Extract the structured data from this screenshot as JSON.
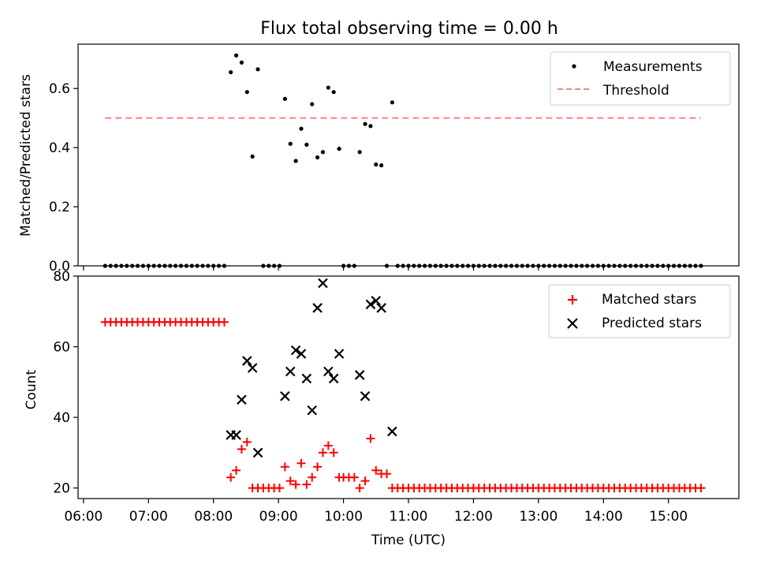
{
  "figure": {
    "title": "Flux total observing time = 0.00 h"
  },
  "chart_data": [
    {
      "type": "scatter",
      "ylabel": "Matched/Predicted stars",
      "xlabel": "",
      "xlim": [
        "05:55",
        "16:05"
      ],
      "ylim": [
        0,
        0.75
      ],
      "yticks": [
        0.0,
        0.2,
        0.4,
        0.6
      ],
      "ytick_labels": [
        "0.0",
        "0.2",
        "0.4",
        "0.6"
      ],
      "legend": {
        "position": "top-right",
        "entries": [
          "Measurements",
          "Threshold"
        ]
      },
      "series": [
        {
          "name": "Measurements",
          "marker": "dot",
          "color": "#000000",
          "points": [
            [
              "06:20",
              0
            ],
            [
              "06:25",
              0
            ],
            [
              "06:30",
              0
            ],
            [
              "06:35",
              0
            ],
            [
              "06:40",
              0
            ],
            [
              "06:45",
              0
            ],
            [
              "06:50",
              0
            ],
            [
              "06:55",
              0
            ],
            [
              "07:00",
              0
            ],
            [
              "07:05",
              0
            ],
            [
              "07:10",
              0
            ],
            [
              "07:15",
              0
            ],
            [
              "07:20",
              0
            ],
            [
              "07:25",
              0
            ],
            [
              "07:30",
              0
            ],
            [
              "07:35",
              0
            ],
            [
              "07:40",
              0
            ],
            [
              "07:45",
              0
            ],
            [
              "07:50",
              0
            ],
            [
              "07:55",
              0
            ],
            [
              "08:00",
              0
            ],
            [
              "08:05",
              0
            ],
            [
              "08:10",
              0
            ],
            [
              "08:16",
              0.655
            ],
            [
              "08:21",
              0.712
            ],
            [
              "08:26",
              0.688
            ],
            [
              "08:31",
              0.588
            ],
            [
              "08:36",
              0.37
            ],
            [
              "08:41",
              0.665
            ],
            [
              "08:46",
              0
            ],
            [
              "08:51",
              0
            ],
            [
              "08:56",
              0
            ],
            [
              "09:01",
              0
            ],
            [
              "09:06",
              0.565
            ],
            [
              "09:11",
              0.413
            ],
            [
              "09:16",
              0.355
            ],
            [
              "09:21",
              0.464
            ],
            [
              "09:26",
              0.41
            ],
            [
              "09:31",
              0.547
            ],
            [
              "09:36",
              0.367
            ],
            [
              "09:41",
              0.385
            ],
            [
              "09:46",
              0.603
            ],
            [
              "09:51",
              0.588
            ],
            [
              "09:56",
              0.396
            ],
            [
              "10:00",
              0
            ],
            [
              "10:05",
              0
            ],
            [
              "10:10",
              0
            ],
            [
              "10:15",
              0.385
            ],
            [
              "10:20",
              0.48
            ],
            [
              "10:25",
              0.473
            ],
            [
              "10:30",
              0.343
            ],
            [
              "10:35",
              0.34
            ],
            [
              "10:40",
              0
            ],
            [
              "10:45",
              0.553
            ],
            [
              "10:50",
              0
            ],
            [
              "10:55",
              0
            ],
            [
              "11:00",
              0
            ],
            [
              "11:05",
              0
            ],
            [
              "11:10",
              0
            ],
            [
              "11:15",
              0
            ],
            [
              "11:20",
              0
            ],
            [
              "11:25",
              0
            ],
            [
              "11:30",
              0
            ],
            [
              "11:35",
              0
            ],
            [
              "11:40",
              0
            ],
            [
              "11:45",
              0
            ],
            [
              "11:50",
              0
            ],
            [
              "11:55",
              0
            ],
            [
              "12:00",
              0
            ],
            [
              "12:05",
              0
            ],
            [
              "12:10",
              0
            ],
            [
              "12:15",
              0
            ],
            [
              "12:20",
              0
            ],
            [
              "12:25",
              0
            ],
            [
              "12:30",
              0
            ],
            [
              "12:35",
              0
            ],
            [
              "12:40",
              0
            ],
            [
              "12:45",
              0
            ],
            [
              "12:50",
              0
            ],
            [
              "12:55",
              0
            ],
            [
              "13:00",
              0
            ],
            [
              "13:05",
              0
            ],
            [
              "13:10",
              0
            ],
            [
              "13:15",
              0
            ],
            [
              "13:20",
              0
            ],
            [
              "13:25",
              0
            ],
            [
              "13:30",
              0
            ],
            [
              "13:35",
              0
            ],
            [
              "13:40",
              0
            ],
            [
              "13:45",
              0
            ],
            [
              "13:50",
              0
            ],
            [
              "13:55",
              0
            ],
            [
              "14:00",
              0
            ],
            [
              "14:05",
              0
            ],
            [
              "14:10",
              0
            ],
            [
              "14:15",
              0
            ],
            [
              "14:20",
              0
            ],
            [
              "14:25",
              0
            ],
            [
              "14:30",
              0
            ],
            [
              "14:35",
              0
            ],
            [
              "14:40",
              0
            ],
            [
              "14:45",
              0
            ],
            [
              "14:50",
              0
            ],
            [
              "14:55",
              0
            ],
            [
              "15:00",
              0
            ],
            [
              "15:05",
              0
            ],
            [
              "15:10",
              0
            ],
            [
              "15:15",
              0
            ],
            [
              "15:20",
              0
            ],
            [
              "15:25",
              0
            ],
            [
              "15:30",
              0
            ]
          ]
        },
        {
          "name": "Threshold",
          "marker": "dashed-line",
          "color": "#ff7f7f",
          "points": [
            [
              "06:20",
              0.5
            ],
            [
              "15:30",
              0.5
            ]
          ]
        }
      ]
    },
    {
      "type": "scatter",
      "ylabel": "Count",
      "xlabel": "Time (UTC)",
      "xlim": [
        "05:55",
        "16:05"
      ],
      "ylim": [
        17,
        80
      ],
      "yticks": [
        20,
        40,
        60,
        80
      ],
      "ytick_labels": [
        "20",
        "40",
        "60",
        "80"
      ],
      "xticks": [
        "06:00",
        "07:00",
        "08:00",
        "09:00",
        "10:00",
        "11:00",
        "12:00",
        "13:00",
        "14:00",
        "15:00"
      ],
      "legend": {
        "position": "top-right",
        "entries": [
          "Matched stars",
          "Predicted stars"
        ]
      },
      "series": [
        {
          "name": "Matched stars",
          "marker": "plus",
          "color": "#ff0000",
          "points": [
            [
              "06:20",
              67
            ],
            [
              "06:25",
              67
            ],
            [
              "06:30",
              67
            ],
            [
              "06:35",
              67
            ],
            [
              "06:40",
              67
            ],
            [
              "06:45",
              67
            ],
            [
              "06:50",
              67
            ],
            [
              "06:55",
              67
            ],
            [
              "07:00",
              67
            ],
            [
              "07:05",
              67
            ],
            [
              "07:10",
              67
            ],
            [
              "07:15",
              67
            ],
            [
              "07:20",
              67
            ],
            [
              "07:25",
              67
            ],
            [
              "07:30",
              67
            ],
            [
              "07:35",
              67
            ],
            [
              "07:40",
              67
            ],
            [
              "07:45",
              67
            ],
            [
              "07:50",
              67
            ],
            [
              "07:55",
              67
            ],
            [
              "08:00",
              67
            ],
            [
              "08:05",
              67
            ],
            [
              "08:10",
              67
            ],
            [
              "08:16",
              23
            ],
            [
              "08:21",
              25
            ],
            [
              "08:26",
              31
            ],
            [
              "08:31",
              33
            ],
            [
              "08:36",
              20
            ],
            [
              "08:41",
              20
            ],
            [
              "08:46",
              20
            ],
            [
              "08:51",
              20
            ],
            [
              "08:56",
              20
            ],
            [
              "09:01",
              20
            ],
            [
              "09:06",
              26
            ],
            [
              "09:11",
              22
            ],
            [
              "09:16",
              21
            ],
            [
              "09:21",
              27
            ],
            [
              "09:26",
              21
            ],
            [
              "09:31",
              23
            ],
            [
              "09:36",
              26
            ],
            [
              "09:41",
              30
            ],
            [
              "09:46",
              32
            ],
            [
              "09:51",
              30
            ],
            [
              "09:56",
              23
            ],
            [
              "10:00",
              23
            ],
            [
              "10:05",
              23
            ],
            [
              "10:10",
              23
            ],
            [
              "10:15",
              20
            ],
            [
              "10:20",
              22
            ],
            [
              "10:25",
              34
            ],
            [
              "10:30",
              25
            ],
            [
              "10:35",
              24
            ],
            [
              "10:40",
              24
            ],
            [
              "10:45",
              20
            ],
            [
              "10:50",
              20
            ],
            [
              "10:55",
              20
            ],
            [
              "11:00",
              20
            ],
            [
              "11:05",
              20
            ],
            [
              "11:10",
              20
            ],
            [
              "11:15",
              20
            ],
            [
              "11:20",
              20
            ],
            [
              "11:25",
              20
            ],
            [
              "11:30",
              20
            ],
            [
              "11:35",
              20
            ],
            [
              "11:40",
              20
            ],
            [
              "11:45",
              20
            ],
            [
              "11:50",
              20
            ],
            [
              "11:55",
              20
            ],
            [
              "12:00",
              20
            ],
            [
              "12:05",
              20
            ],
            [
              "12:10",
              20
            ],
            [
              "12:15",
              20
            ],
            [
              "12:20",
              20
            ],
            [
              "12:25",
              20
            ],
            [
              "12:30",
              20
            ],
            [
              "12:35",
              20
            ],
            [
              "12:40",
              20
            ],
            [
              "12:45",
              20
            ],
            [
              "12:50",
              20
            ],
            [
              "12:55",
              20
            ],
            [
              "13:00",
              20
            ],
            [
              "13:05",
              20
            ],
            [
              "13:10",
              20
            ],
            [
              "13:15",
              20
            ],
            [
              "13:20",
              20
            ],
            [
              "13:25",
              20
            ],
            [
              "13:30",
              20
            ],
            [
              "13:35",
              20
            ],
            [
              "13:40",
              20
            ],
            [
              "13:45",
              20
            ],
            [
              "13:50",
              20
            ],
            [
              "13:55",
              20
            ],
            [
              "14:00",
              20
            ],
            [
              "14:05",
              20
            ],
            [
              "14:10",
              20
            ],
            [
              "14:15",
              20
            ],
            [
              "14:20",
              20
            ],
            [
              "14:25",
              20
            ],
            [
              "14:30",
              20
            ],
            [
              "14:35",
              20
            ],
            [
              "14:40",
              20
            ],
            [
              "14:45",
              20
            ],
            [
              "14:50",
              20
            ],
            [
              "14:55",
              20
            ],
            [
              "15:00",
              20
            ],
            [
              "15:05",
              20
            ],
            [
              "15:10",
              20
            ],
            [
              "15:15",
              20
            ],
            [
              "15:20",
              20
            ],
            [
              "15:25",
              20
            ],
            [
              "15:30",
              20
            ]
          ]
        },
        {
          "name": "Predicted stars",
          "marker": "x",
          "color": "#000000",
          "points": [
            [
              "08:16",
              35
            ],
            [
              "08:21",
              35
            ],
            [
              "08:26",
              45
            ],
            [
              "08:31",
              56
            ],
            [
              "08:36",
              54
            ],
            [
              "08:41",
              30
            ],
            [
              "09:06",
              46
            ],
            [
              "09:11",
              53
            ],
            [
              "09:16",
              59
            ],
            [
              "09:21",
              58
            ],
            [
              "09:26",
              51
            ],
            [
              "09:31",
              42
            ],
            [
              "09:36",
              71
            ],
            [
              "09:41",
              78
            ],
            [
              "09:46",
              53
            ],
            [
              "09:51",
              51
            ],
            [
              "09:56",
              58
            ],
            [
              "10:15",
              52
            ],
            [
              "10:20",
              46
            ],
            [
              "10:25",
              72
            ],
            [
              "10:30",
              73
            ],
            [
              "10:35",
              71
            ],
            [
              "10:45",
              36
            ]
          ]
        }
      ]
    }
  ]
}
